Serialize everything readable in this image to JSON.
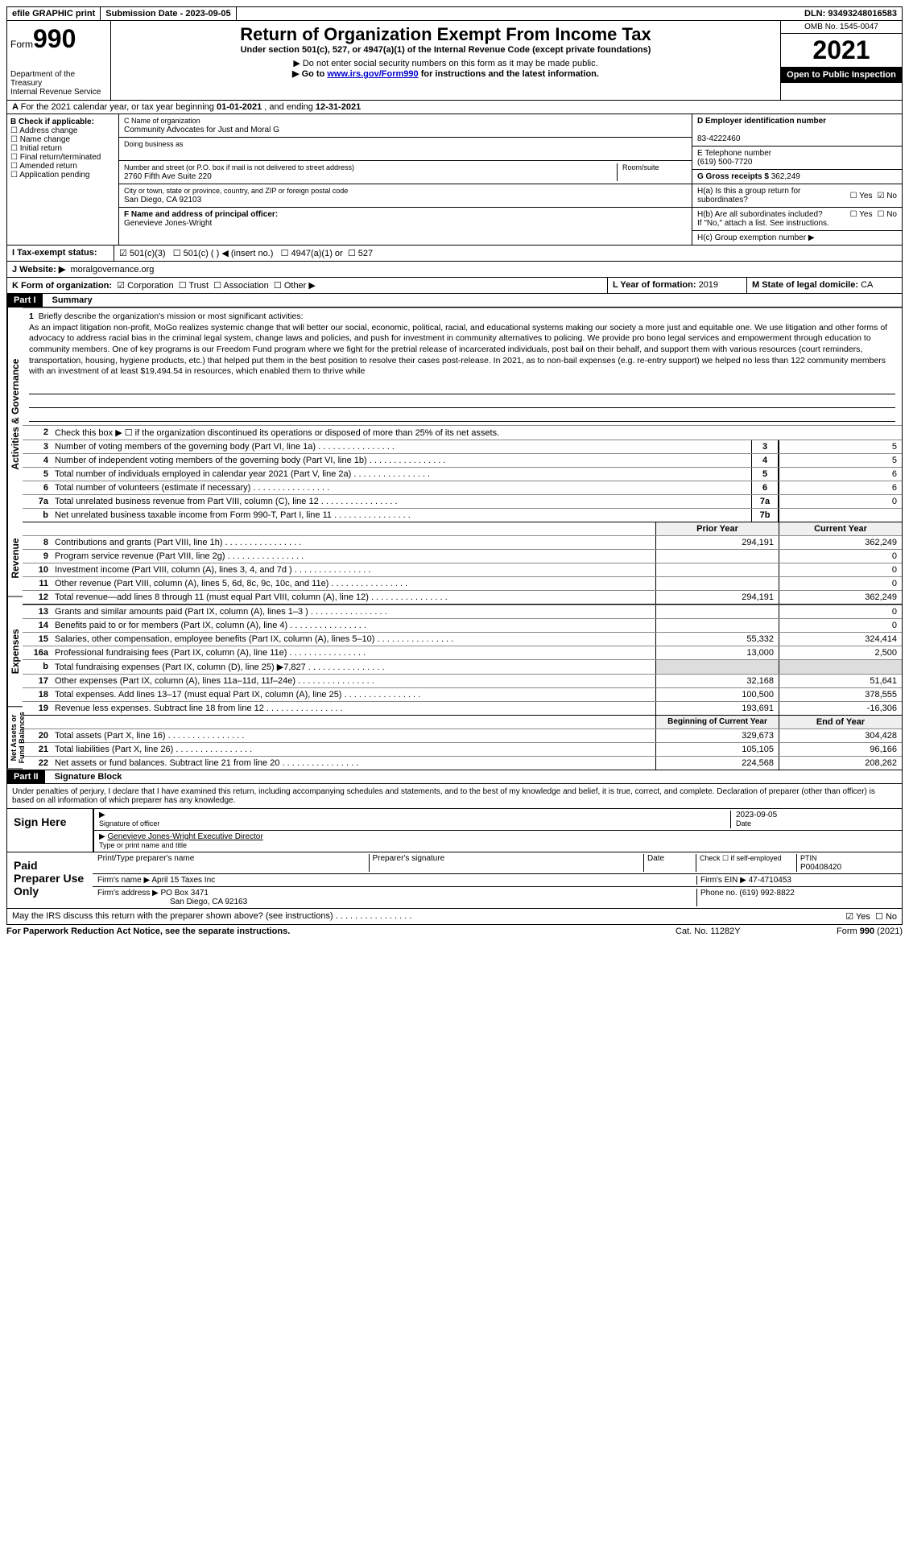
{
  "topbar": {
    "efile": "efile GRAPHIC print",
    "sub_label": "Submission Date - ",
    "sub_date": "2023-09-05",
    "dln_label": "DLN: ",
    "dln": "93493248016583"
  },
  "header": {
    "form_word": "Form",
    "form_num": "990",
    "dept": "Department of the Treasury\nInternal Revenue Service",
    "title": "Return of Organization Exempt From Income Tax",
    "subtitle": "Under section 501(c), 527, or 4947(a)(1) of the Internal Revenue Code (except private foundations)",
    "note1": "Do not enter social security numbers on this form as it may be made public.",
    "note2_pre": "Go to ",
    "note2_link": "www.irs.gov/Form990",
    "note2_post": " for instructions and the latest information.",
    "omb": "OMB No. 1545-0047",
    "year": "2021",
    "open": "Open to Public Inspection"
  },
  "row_a": {
    "text": "For the 2021 calendar year, or tax year beginning ",
    "begin": "01-01-2021",
    "mid": " , and ending ",
    "end": "12-31-2021"
  },
  "col_b": {
    "label": "B Check if applicable:",
    "items": [
      "Address change",
      "Name change",
      "Initial return",
      "Final return/terminated",
      "Amended return",
      "Application pending"
    ]
  },
  "col_c": {
    "name_label": "C Name of organization",
    "name": "Community Advocates for Just and Moral G",
    "dba_label": "Doing business as",
    "dba": "",
    "addr_label": "Number and street (or P.O. box if mail is not delivered to street address)",
    "room_label": "Room/suite",
    "addr": "2760 Fifth Ave Suite 220",
    "city_label": "City or town, state or province, country, and ZIP or foreign postal code",
    "city": "San Diego, CA  92103",
    "officer_label": "F Name and address of principal officer:",
    "officer": "Genevieve Jones-Wright"
  },
  "col_d": {
    "ein_label": "D Employer identification number",
    "ein": "83-4222460",
    "phone_label": "E Telephone number",
    "phone": "(619) 500-7720",
    "gross_label": "G Gross receipts $ ",
    "gross": "362,249",
    "ha": "H(a)  Is this a group return for subordinates?",
    "hb": "H(b)  Are all subordinates included?",
    "hb_note": "If \"No,\" attach a list. See instructions.",
    "hc": "H(c)  Group exemption number ▶",
    "yes": "Yes",
    "no": "No"
  },
  "row_i": {
    "label": "I    Tax-exempt status:",
    "o1": "501(c)(3)",
    "o2": "501(c) (  ) ◀ (insert no.)",
    "o3": "4947(a)(1) or",
    "o4": "527"
  },
  "row_j": {
    "label": "J   Website: ▶",
    "val": "moralgovernance.org"
  },
  "row_k": {
    "label": "K Form of organization:",
    "o1": "Corporation",
    "o2": "Trust",
    "o3": "Association",
    "o4": "Other ▶",
    "l_label": "L Year of formation: ",
    "l_val": "2019",
    "m_label": "M State of legal domicile: ",
    "m_val": "CA"
  },
  "part1": {
    "tag": "Part I",
    "title": "Summary",
    "vlabel1": "Activities & Governance",
    "vlabel2": "Revenue",
    "vlabel3": "Expenses",
    "vlabel4": "Net Assets or Fund Balances",
    "l1": "Briefly describe the organization's mission or most significant activities:",
    "mission": "As an impact litigation non-profit, MoGo realizes systemic change that will better our social, economic, political, racial, and educational systems making our society a more just and equitable one. We use litigation and other forms of advocacy to address racial bias in the criminal legal system, change laws and policies, and push for investment in community alternatives to policing. We provide pro bono legal services and empowerment through education to community members. One of key programs is our Freedom Fund program where we fight for the pretrial release of incarcerated individuals, post bail on their behalf, and support them with various resources (court reminders, transportation, housing, hygiene products, etc.) that helped put them in the best position to resolve their cases post-release. In 2021, as to non-bail expenses (e.g. re-entry support) we helped no less than 122 community members with an investment of at least $19,494.54 in resources, which enabled them to thrive while",
    "l2": "Check this box ▶ ☐ if the organization discontinued its operations or disposed of more than 25% of its net assets.",
    "lines_gov": [
      {
        "n": "3",
        "d": "Number of voting members of the governing body (Part VI, line 1a)",
        "b": "3",
        "v": "5"
      },
      {
        "n": "4",
        "d": "Number of independent voting members of the governing body (Part VI, line 1b)",
        "b": "4",
        "v": "5"
      },
      {
        "n": "5",
        "d": "Total number of individuals employed in calendar year 2021 (Part V, line 2a)",
        "b": "5",
        "v": "6"
      },
      {
        "n": "6",
        "d": "Total number of volunteers (estimate if necessary)",
        "b": "6",
        "v": "6"
      },
      {
        "n": "7a",
        "d": "Total unrelated business revenue from Part VIII, column (C), line 12",
        "b": "7a",
        "v": "0"
      },
      {
        "n": "b",
        "d": "Net unrelated business taxable income from Form 990-T, Part I, line 11",
        "b": "7b",
        "v": ""
      }
    ],
    "hdr_prior": "Prior Year",
    "hdr_curr": "Current Year",
    "lines_rev": [
      {
        "n": "8",
        "d": "Contributions and grants (Part VIII, line 1h)",
        "p": "294,191",
        "c": "362,249"
      },
      {
        "n": "9",
        "d": "Program service revenue (Part VIII, line 2g)",
        "p": "",
        "c": "0"
      },
      {
        "n": "10",
        "d": "Investment income (Part VIII, column (A), lines 3, 4, and 7d )",
        "p": "",
        "c": "0"
      },
      {
        "n": "11",
        "d": "Other revenue (Part VIII, column (A), lines 5, 6d, 8c, 9c, 10c, and 11e)",
        "p": "",
        "c": "0"
      },
      {
        "n": "12",
        "d": "Total revenue—add lines 8 through 11 (must equal Part VIII, column (A), line 12)",
        "p": "294,191",
        "c": "362,249"
      }
    ],
    "lines_exp": [
      {
        "n": "13",
        "d": "Grants and similar amounts paid (Part IX, column (A), lines 1–3 )",
        "p": "",
        "c": "0"
      },
      {
        "n": "14",
        "d": "Benefits paid to or for members (Part IX, column (A), line 4)",
        "p": "",
        "c": "0"
      },
      {
        "n": "15",
        "d": "Salaries, other compensation, employee benefits (Part IX, column (A), lines 5–10)",
        "p": "55,332",
        "c": "324,414"
      },
      {
        "n": "16a",
        "d": "Professional fundraising fees (Part IX, column (A), line 11e)",
        "p": "13,000",
        "c": "2,500"
      },
      {
        "n": "b",
        "d": "Total fundraising expenses (Part IX, column (D), line 25)  ▶7,827",
        "p": "__GREY__",
        "c": "__GREY__"
      },
      {
        "n": "17",
        "d": "Other expenses (Part IX, column (A), lines 11a–11d, 11f–24e)",
        "p": "32,168",
        "c": "51,641"
      },
      {
        "n": "18",
        "d": "Total expenses. Add lines 13–17 (must equal Part IX, column (A), line 25)",
        "p": "100,500",
        "c": "378,555"
      },
      {
        "n": "19",
        "d": "Revenue less expenses. Subtract line 18 from line 12",
        "p": "193,691",
        "c": "-16,306"
      }
    ],
    "hdr_begin": "Beginning of Current Year",
    "hdr_end": "End of Year",
    "lines_net": [
      {
        "n": "20",
        "d": "Total assets (Part X, line 16)",
        "p": "329,673",
        "c": "304,428"
      },
      {
        "n": "21",
        "d": "Total liabilities (Part X, line 26)",
        "p": "105,105",
        "c": "96,166"
      },
      {
        "n": "22",
        "d": "Net assets or fund balances. Subtract line 21 from line 20",
        "p": "224,568",
        "c": "208,262"
      }
    ]
  },
  "part2": {
    "tag": "Part II",
    "title": "Signature Block",
    "perjury": "Under penalties of perjury, I declare that I have examined this return, including accompanying schedules and statements, and to the best of my knowledge and belief, it is true, correct, and complete. Declaration of preparer (other than officer) is based on all information of which preparer has any knowledge.",
    "sign_here": "Sign Here",
    "sig_officer": "Signature of officer",
    "sig_date_label": "Date",
    "sig_date": "2023-09-05",
    "sig_name": "Genevieve Jones-Wright  Executive Director",
    "sig_type": "Type or print name and title",
    "paid": "Paid Preparer Use Only",
    "pp_name_label": "Print/Type preparer's name",
    "pp_sig_label": "Preparer's signature",
    "pp_date_label": "Date",
    "pp_self": "Check ☐ if self-employed",
    "pp_ptin_label": "PTIN",
    "pp_ptin": "P00408420",
    "firm_name_label": "Firm's name    ▶ ",
    "firm_name": "April 15 Taxes Inc",
    "firm_ein_label": "Firm's EIN ▶ ",
    "firm_ein": "47-4710453",
    "firm_addr_label": "Firm's address ▶ ",
    "firm_addr": "PO Box 3471",
    "firm_city": "San Diego, CA  92163",
    "firm_phone_label": "Phone no. ",
    "firm_phone": "(619) 992-8822",
    "discuss": "May the IRS discuss this return with the preparer shown above? (see instructions)",
    "discuss_yes": "Yes",
    "discuss_no": "No"
  },
  "footer": {
    "left": "For Paperwork Reduction Act Notice, see the separate instructions.",
    "mid": "Cat. No. 11282Y",
    "right": "Form 990 (2021)"
  }
}
